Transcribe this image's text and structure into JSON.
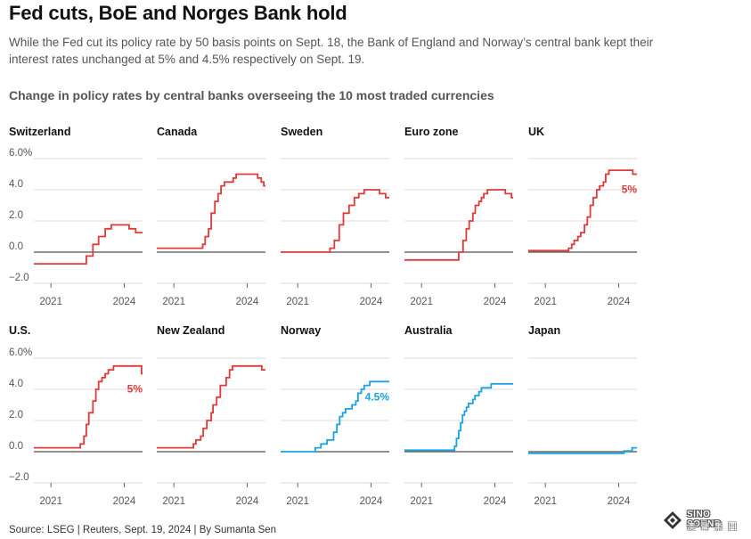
{
  "header": {
    "title": "Fed cuts, BoE and Norges Bank hold",
    "subtitle": "While the Fed cut its policy rate by 50 basis points on Sept. 18, the Bank of England and Norway’s central bank kept their interest rates unchanged at 5% and 4.5% respectively on Sept. 19.",
    "chart_heading": "Change in policy rates by central banks overseeing the 10 most traded currencies"
  },
  "footer": {
    "source": "Source: LSEG | Reuters, Sept. 19, 2024 | By Sumanta Sen"
  },
  "logo": {
    "name": "SINO SOUND",
    "cn": "澳 聲 集 團"
  },
  "colors": {
    "red": "#e03b3b",
    "blue": "#1aa3e0",
    "zero_line": "#222222",
    "grid": "#dddddd",
    "axis_text": "#555555"
  },
  "chart_data": {
    "type": "line",
    "x_ticks": [
      2021,
      2024
    ],
    "x_range": [
      2020.3,
      2024.75
    ],
    "y_ticks": [
      -2,
      0,
      2,
      4,
      6
    ],
    "y_tick_labels": [
      "−2.0",
      "0.0",
      "2.0",
      "4.0",
      "6.0%"
    ],
    "ylim": [
      -2,
      6
    ],
    "series": [
      {
        "name": "Switzerland",
        "color": "red",
        "points": [
          [
            2020.3,
            -0.75
          ],
          [
            2022.45,
            -0.75
          ],
          [
            2022.45,
            -0.25
          ],
          [
            2022.72,
            -0.25
          ],
          [
            2022.72,
            0.5
          ],
          [
            2022.95,
            0.5
          ],
          [
            2022.95,
            1.0
          ],
          [
            2023.22,
            1.0
          ],
          [
            2023.22,
            1.5
          ],
          [
            2023.47,
            1.5
          ],
          [
            2023.47,
            1.75
          ],
          [
            2024.2,
            1.75
          ],
          [
            2024.2,
            1.5
          ],
          [
            2024.47,
            1.5
          ],
          [
            2024.47,
            1.25
          ],
          [
            2024.75,
            1.25
          ]
        ]
      },
      {
        "name": "Canada",
        "color": "red",
        "points": [
          [
            2020.3,
            0.25
          ],
          [
            2022.18,
            0.25
          ],
          [
            2022.18,
            0.5
          ],
          [
            2022.28,
            0.5
          ],
          [
            2022.28,
            1.0
          ],
          [
            2022.42,
            1.0
          ],
          [
            2022.42,
            1.5
          ],
          [
            2022.53,
            1.5
          ],
          [
            2022.53,
            2.5
          ],
          [
            2022.68,
            2.5
          ],
          [
            2022.68,
            3.25
          ],
          [
            2022.81,
            3.25
          ],
          [
            2022.81,
            3.75
          ],
          [
            2022.93,
            3.75
          ],
          [
            2022.93,
            4.25
          ],
          [
            2023.07,
            4.25
          ],
          [
            2023.07,
            4.5
          ],
          [
            2023.43,
            4.5
          ],
          [
            2023.43,
            4.75
          ],
          [
            2023.55,
            4.75
          ],
          [
            2023.55,
            5.0
          ],
          [
            2024.43,
            5.0
          ],
          [
            2024.43,
            4.75
          ],
          [
            2024.58,
            4.75
          ],
          [
            2024.58,
            4.5
          ],
          [
            2024.68,
            4.5
          ],
          [
            2024.68,
            4.25
          ],
          [
            2024.75,
            4.25
          ]
        ]
      },
      {
        "name": "Sweden",
        "color": "red",
        "points": [
          [
            2020.3,
            0.0
          ],
          [
            2022.32,
            0.0
          ],
          [
            2022.32,
            0.25
          ],
          [
            2022.5,
            0.25
          ],
          [
            2022.5,
            0.75
          ],
          [
            2022.7,
            0.75
          ],
          [
            2022.7,
            1.75
          ],
          [
            2022.87,
            1.75
          ],
          [
            2022.87,
            2.5
          ],
          [
            2023.1,
            2.5
          ],
          [
            2023.1,
            3.0
          ],
          [
            2023.32,
            3.0
          ],
          [
            2023.32,
            3.5
          ],
          [
            2023.5,
            3.5
          ],
          [
            2023.5,
            3.75
          ],
          [
            2023.72,
            3.75
          ],
          [
            2023.72,
            4.0
          ],
          [
            2024.35,
            4.0
          ],
          [
            2024.35,
            3.75
          ],
          [
            2024.6,
            3.75
          ],
          [
            2024.6,
            3.5
          ],
          [
            2024.75,
            3.5
          ]
        ]
      },
      {
        "name": "Euro zone",
        "color": "red",
        "points": [
          [
            2020.3,
            -0.5
          ],
          [
            2022.52,
            -0.5
          ],
          [
            2022.52,
            0.0
          ],
          [
            2022.7,
            0.0
          ],
          [
            2022.7,
            0.75
          ],
          [
            2022.83,
            0.75
          ],
          [
            2022.83,
            1.5
          ],
          [
            2022.95,
            1.5
          ],
          [
            2022.95,
            2.0
          ],
          [
            2023.1,
            2.0
          ],
          [
            2023.1,
            2.5
          ],
          [
            2023.2,
            2.5
          ],
          [
            2023.2,
            3.0
          ],
          [
            2023.35,
            3.0
          ],
          [
            2023.35,
            3.25
          ],
          [
            2023.45,
            3.25
          ],
          [
            2023.45,
            3.5
          ],
          [
            2023.55,
            3.5
          ],
          [
            2023.55,
            3.75
          ],
          [
            2023.7,
            3.75
          ],
          [
            2023.7,
            4.0
          ],
          [
            2024.43,
            4.0
          ],
          [
            2024.43,
            3.75
          ],
          [
            2024.68,
            3.75
          ],
          [
            2024.68,
            3.5
          ],
          [
            2024.75,
            3.5
          ]
        ]
      },
      {
        "name": "UK",
        "color": "red",
        "points": [
          [
            2020.3,
            0.1
          ],
          [
            2021.95,
            0.1
          ],
          [
            2021.95,
            0.25
          ],
          [
            2022.08,
            0.25
          ],
          [
            2022.08,
            0.5
          ],
          [
            2022.18,
            0.5
          ],
          [
            2022.18,
            0.75
          ],
          [
            2022.33,
            0.75
          ],
          [
            2022.33,
            1.0
          ],
          [
            2022.45,
            1.0
          ],
          [
            2022.45,
            1.25
          ],
          [
            2022.6,
            1.25
          ],
          [
            2022.6,
            1.75
          ],
          [
            2022.72,
            1.75
          ],
          [
            2022.72,
            2.25
          ],
          [
            2022.84,
            2.25
          ],
          [
            2022.84,
            3.0
          ],
          [
            2022.96,
            3.0
          ],
          [
            2022.96,
            3.5
          ],
          [
            2023.1,
            3.5
          ],
          [
            2023.1,
            4.0
          ],
          [
            2023.22,
            4.0
          ],
          [
            2023.22,
            4.25
          ],
          [
            2023.38,
            4.25
          ],
          [
            2023.38,
            4.5
          ],
          [
            2023.47,
            4.5
          ],
          [
            2023.47,
            5.0
          ],
          [
            2023.6,
            5.0
          ],
          [
            2023.6,
            5.25
          ],
          [
            2024.58,
            5.25
          ],
          [
            2024.58,
            5.0
          ],
          [
            2024.75,
            5.0
          ]
        ]
      },
      {
        "name": "U.S.",
        "color": "red",
        "points": [
          [
            2020.3,
            0.25
          ],
          [
            2022.2,
            0.25
          ],
          [
            2022.2,
            0.5
          ],
          [
            2022.35,
            0.5
          ],
          [
            2022.35,
            1.0
          ],
          [
            2022.45,
            1.0
          ],
          [
            2022.45,
            1.75
          ],
          [
            2022.55,
            1.75
          ],
          [
            2022.55,
            2.5
          ],
          [
            2022.72,
            2.5
          ],
          [
            2022.72,
            3.25
          ],
          [
            2022.84,
            3.25
          ],
          [
            2022.84,
            4.0
          ],
          [
            2022.95,
            4.0
          ],
          [
            2022.95,
            4.5
          ],
          [
            2023.09,
            4.5
          ],
          [
            2023.09,
            4.75
          ],
          [
            2023.22,
            4.75
          ],
          [
            2023.22,
            5.0
          ],
          [
            2023.35,
            5.0
          ],
          [
            2023.35,
            5.25
          ],
          [
            2023.56,
            5.25
          ],
          [
            2023.56,
            5.5
          ],
          [
            2024.71,
            5.5
          ],
          [
            2024.71,
            5.0
          ],
          [
            2024.75,
            5.0
          ]
        ]
      },
      {
        "name": "New Zealand",
        "color": "red",
        "points": [
          [
            2020.3,
            0.25
          ],
          [
            2021.8,
            0.25
          ],
          [
            2021.8,
            0.5
          ],
          [
            2021.9,
            0.5
          ],
          [
            2021.9,
            0.75
          ],
          [
            2022.1,
            0.75
          ],
          [
            2022.1,
            1.0
          ],
          [
            2022.2,
            1.0
          ],
          [
            2022.2,
            1.5
          ],
          [
            2022.35,
            1.5
          ],
          [
            2022.35,
            2.0
          ],
          [
            2022.53,
            2.0
          ],
          [
            2022.53,
            2.5
          ],
          [
            2022.6,
            2.5
          ],
          [
            2022.6,
            3.0
          ],
          [
            2022.75,
            3.0
          ],
          [
            2022.75,
            3.5
          ],
          [
            2022.9,
            3.5
          ],
          [
            2022.9,
            4.25
          ],
          [
            2023.14,
            4.25
          ],
          [
            2023.14,
            4.75
          ],
          [
            2023.28,
            4.75
          ],
          [
            2023.28,
            5.25
          ],
          [
            2023.4,
            5.25
          ],
          [
            2023.4,
            5.5
          ],
          [
            2024.6,
            5.5
          ],
          [
            2024.6,
            5.25
          ],
          [
            2024.75,
            5.25
          ]
        ]
      },
      {
        "name": "Norway",
        "color": "blue",
        "points": [
          [
            2020.3,
            0.0
          ],
          [
            2021.72,
            0.0
          ],
          [
            2021.72,
            0.25
          ],
          [
            2021.95,
            0.25
          ],
          [
            2021.95,
            0.5
          ],
          [
            2022.2,
            0.5
          ],
          [
            2022.2,
            0.75
          ],
          [
            2022.47,
            0.75
          ],
          [
            2022.47,
            1.25
          ],
          [
            2022.6,
            1.25
          ],
          [
            2022.6,
            1.75
          ],
          [
            2022.72,
            1.75
          ],
          [
            2022.72,
            2.25
          ],
          [
            2022.84,
            2.25
          ],
          [
            2022.84,
            2.5
          ],
          [
            2022.96,
            2.5
          ],
          [
            2022.96,
            2.75
          ],
          [
            2023.22,
            2.75
          ],
          [
            2023.22,
            3.0
          ],
          [
            2023.38,
            3.0
          ],
          [
            2023.38,
            3.25
          ],
          [
            2023.47,
            3.25
          ],
          [
            2023.47,
            3.75
          ],
          [
            2023.6,
            3.75
          ],
          [
            2023.6,
            4.0
          ],
          [
            2023.72,
            4.0
          ],
          [
            2023.72,
            4.25
          ],
          [
            2023.95,
            4.25
          ],
          [
            2023.95,
            4.5
          ],
          [
            2024.75,
            4.5
          ]
        ]
      },
      {
        "name": "Australia",
        "color": "blue",
        "points": [
          [
            2020.3,
            0.1
          ],
          [
            2022.35,
            0.1
          ],
          [
            2022.35,
            0.35
          ],
          [
            2022.43,
            0.35
          ],
          [
            2022.43,
            0.85
          ],
          [
            2022.52,
            0.85
          ],
          [
            2022.52,
            1.35
          ],
          [
            2022.6,
            1.35
          ],
          [
            2022.6,
            1.85
          ],
          [
            2022.68,
            1.85
          ],
          [
            2022.68,
            2.35
          ],
          [
            2022.76,
            2.35
          ],
          [
            2022.76,
            2.6
          ],
          [
            2022.84,
            2.6
          ],
          [
            2022.84,
            2.85
          ],
          [
            2022.92,
            2.85
          ],
          [
            2022.92,
            3.1
          ],
          [
            2023.1,
            3.1
          ],
          [
            2023.1,
            3.35
          ],
          [
            2023.19,
            3.35
          ],
          [
            2023.19,
            3.6
          ],
          [
            2023.35,
            3.6
          ],
          [
            2023.35,
            3.85
          ],
          [
            2023.45,
            3.85
          ],
          [
            2023.45,
            4.1
          ],
          [
            2023.85,
            4.1
          ],
          [
            2023.85,
            4.35
          ],
          [
            2024.75,
            4.35
          ]
        ]
      },
      {
        "name": "Japan",
        "color": "blue",
        "points": [
          [
            2020.3,
            -0.1
          ],
          [
            2024.22,
            -0.1
          ],
          [
            2024.22,
            0.05
          ],
          [
            2024.55,
            0.05
          ],
          [
            2024.55,
            0.25
          ],
          [
            2024.75,
            0.25
          ]
        ]
      }
    ],
    "annotations": [
      {
        "series": "UK",
        "text": "5%",
        "color": "red"
      },
      {
        "series": "U.S.",
        "text": "5%",
        "color": "red"
      },
      {
        "series": "Norway",
        "text": "4.5%",
        "color": "blue"
      }
    ]
  }
}
